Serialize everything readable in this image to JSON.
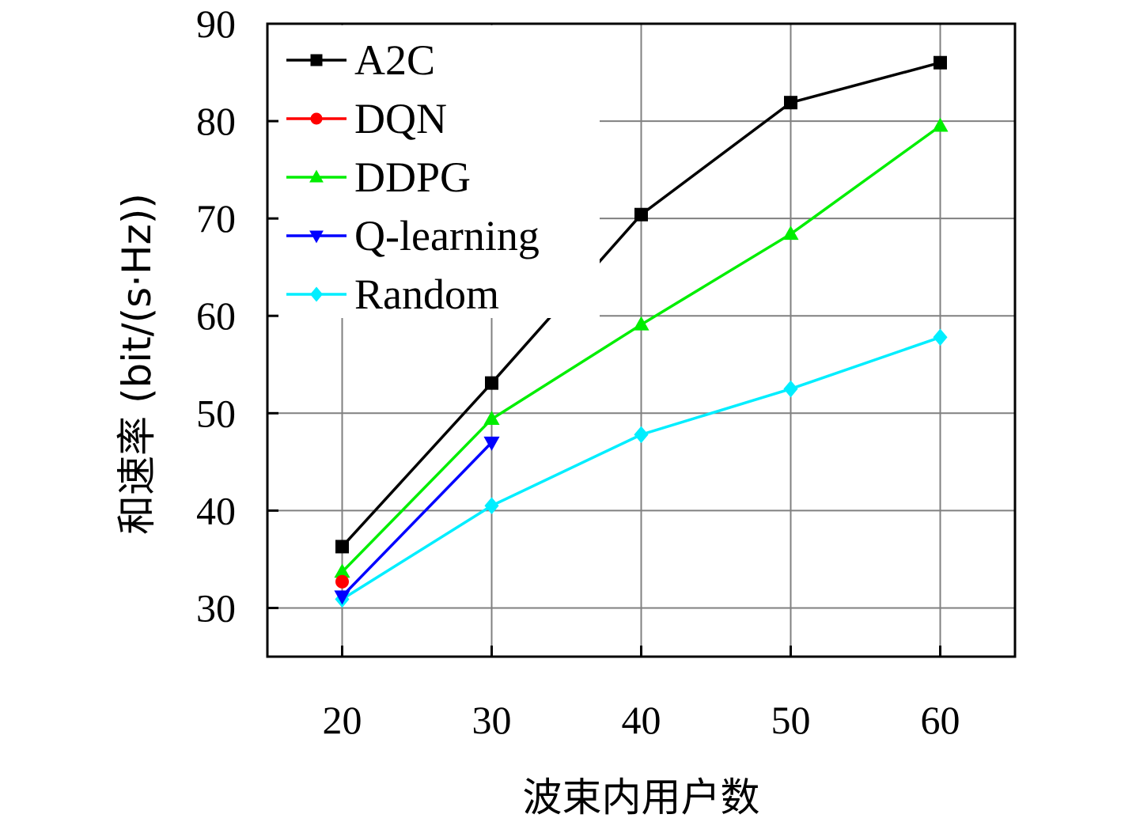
{
  "chart_data": {
    "type": "line",
    "title": "",
    "xlabel": "波束内用户数",
    "ylabel": "和速率 (bit/(s·Hz))",
    "xlim": [
      15,
      65
    ],
    "ylim": [
      25,
      90
    ],
    "x_ticks": [
      20,
      30,
      40,
      50,
      60
    ],
    "y_ticks": [
      30,
      40,
      50,
      60,
      70,
      80,
      90
    ],
    "grid": true,
    "legend_position": "top-left",
    "series": [
      {
        "name": "A2C",
        "color": "#000000",
        "marker": "square",
        "x": [
          20,
          30,
          40,
          50,
          60
        ],
        "y": [
          36.3,
          53.1,
          70.4,
          81.9,
          86.0
        ]
      },
      {
        "name": "DQN",
        "color": "#ff0000",
        "marker": "circle",
        "x": [
          20
        ],
        "y": [
          32.7
        ]
      },
      {
        "name": "DDPG",
        "color": "#00ee00",
        "marker": "triangle-up",
        "x": [
          20,
          30,
          40,
          50,
          60
        ],
        "y": [
          33.7,
          49.4,
          59.1,
          68.4,
          79.5
        ]
      },
      {
        "name": "Q-learning",
        "color": "#0000ff",
        "marker": "triangle-down",
        "x": [
          20,
          30
        ],
        "y": [
          31.2,
          47.0
        ]
      },
      {
        "name": "Random",
        "color": "#00eeff",
        "marker": "diamond",
        "x": [
          20,
          30,
          40,
          50,
          60
        ],
        "y": [
          30.9,
          40.5,
          47.8,
          52.5,
          57.8
        ]
      }
    ]
  }
}
